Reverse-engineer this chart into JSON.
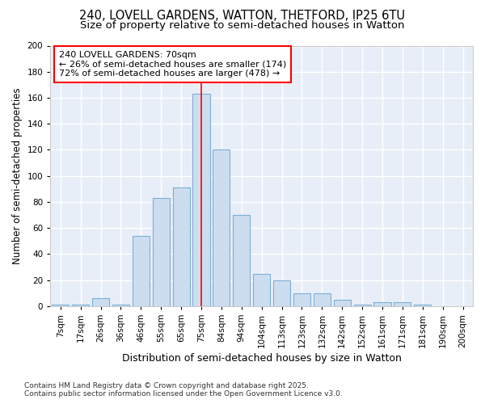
{
  "title1": "240, LOVELL GARDENS, WATTON, THETFORD, IP25 6TU",
  "title2": "Size of property relative to semi-detached houses in Watton",
  "xlabel": "Distribution of semi-detached houses by size in Watton",
  "ylabel": "Number of semi-detached properties",
  "footer1": "Contains HM Land Registry data © Crown copyright and database right 2025.",
  "footer2": "Contains public sector information licensed under the Open Government Licence v3.0.",
  "categories": [
    "7sqm",
    "17sqm",
    "26sqm",
    "36sqm",
    "46sqm",
    "55sqm",
    "65sqm",
    "75sqm",
    "84sqm",
    "94sqm",
    "104sqm",
    "113sqm",
    "123sqm",
    "132sqm",
    "142sqm",
    "152sqm",
    "161sqm",
    "171sqm",
    "181sqm",
    "190sqm",
    "200sqm"
  ],
  "values": [
    1,
    1,
    6,
    1,
    54,
    83,
    91,
    163,
    120,
    70,
    25,
    20,
    10,
    10,
    5,
    1,
    3,
    3,
    1,
    0,
    0
  ],
  "bar_color": "#cdddf0",
  "bar_edge_color": "#7bafd4",
  "vline_x": 7,
  "vline_color": "red",
  "annotation_line1": "240 LOVELL GARDENS: 70sqm",
  "annotation_line2": "← 26% of semi-detached houses are smaller (174)",
  "annotation_line3": "72% of semi-detached houses are larger (478) →",
  "annotation_box_color": "white",
  "annotation_box_edge_color": "red",
  "ylim": [
    0,
    200
  ],
  "yticks": [
    0,
    20,
    40,
    60,
    80,
    100,
    120,
    140,
    160,
    180,
    200
  ],
  "background_color": "#ffffff",
  "plot_bg_color": "#e8eef8",
  "grid_color": "#ffffff",
  "title1_fontsize": 10.5,
  "title2_fontsize": 9.5,
  "xlabel_fontsize": 9,
  "ylabel_fontsize": 8.5,
  "tick_fontsize": 7.5,
  "annot_fontsize": 8,
  "footer_fontsize": 6.5
}
